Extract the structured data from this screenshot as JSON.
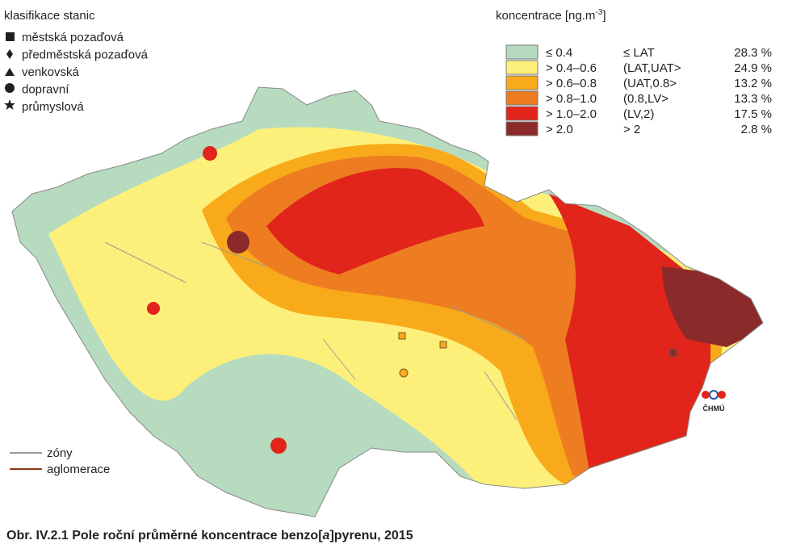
{
  "station_legend": {
    "title": "klasifikace stanic",
    "items": [
      "městská pozaďová",
      "předměstská pozaďová",
      "venkovská",
      "dopravní",
      "průmyslová"
    ]
  },
  "concentration_legend": {
    "title": "koncentrace [ng.m",
    "title_sup": "-3",
    "title_end": "]",
    "rows": [
      {
        "range": "≤ 0.4",
        "limit": "≤ LAT",
        "share": "28.3 %",
        "color": "#b6dbbf"
      },
      {
        "range": "> 0.4–0.6",
        "limit": "(LAT,UAT>",
        "share": "24.9 %",
        "color": "#fdf07a"
      },
      {
        "range": "> 0.6–0.8",
        "limit": "(UAT,0.8>",
        "share": "13.2 %",
        "color": "#f8aa1a"
      },
      {
        "range": "> 0.8–1.0",
        "limit": "(0.8,LV>",
        "share": "13.3 %",
        "color": "#ee7d22"
      },
      {
        "range": "> 1.0–2.0",
        "limit": "(LV,2)",
        "share": "17.5 %",
        "color": "#e1251b"
      },
      {
        "range": "> 2.0",
        "limit": "> 2",
        "share": "2.8 %",
        "color": "#8b2a2a"
      }
    ]
  },
  "line_legend": [
    "zóny",
    "aglomerace"
  ],
  "logo": "ČHMÚ",
  "caption": {
    "prefix": "Obr. IV.2.1  Pole roční průměrné koncentrace benzo[",
    "italic": "a",
    "suffix": "]pyrenu, 2015"
  }
}
